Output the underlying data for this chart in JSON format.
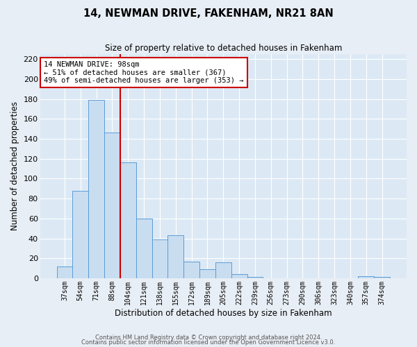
{
  "title": "14, NEWMAN DRIVE, FAKENHAM, NR21 8AN",
  "subtitle": "Size of property relative to detached houses in Fakenham",
  "xlabel": "Distribution of detached houses by size in Fakenham",
  "ylabel": "Number of detached properties",
  "bar_labels": [
    "37sqm",
    "54sqm",
    "71sqm",
    "88sqm",
    "104sqm",
    "121sqm",
    "138sqm",
    "155sqm",
    "172sqm",
    "189sqm",
    "205sqm",
    "222sqm",
    "239sqm",
    "256sqm",
    "273sqm",
    "290sqm",
    "306sqm",
    "323sqm",
    "340sqm",
    "357sqm",
    "374sqm"
  ],
  "bar_values": [
    12,
    88,
    179,
    146,
    116,
    60,
    39,
    43,
    17,
    9,
    16,
    4,
    1,
    0,
    0,
    0,
    0,
    0,
    0,
    2,
    1
  ],
  "bar_color": "#c9ddf0",
  "bar_edgecolor": "#5b9bd5",
  "bar_width": 1.0,
  "vline_color": "#cc0000",
  "ylim": [
    0,
    225
  ],
  "yticks": [
    0,
    20,
    40,
    60,
    80,
    100,
    120,
    140,
    160,
    180,
    200,
    220
  ],
  "annotation_title": "14 NEWMAN DRIVE: 98sqm",
  "annotation_line1": "← 51% of detached houses are smaller (367)",
  "annotation_line2": "49% of semi-detached houses are larger (353) →",
  "annotation_box_color": "#cc0000",
  "fig_bg_color": "#e8eef5",
  "axes_bg_color": "#dce9f5",
  "footnote1": "Contains HM Land Registry data © Crown copyright and database right 2024.",
  "footnote2": "Contains public sector information licensed under the Open Government Licence v3.0."
}
